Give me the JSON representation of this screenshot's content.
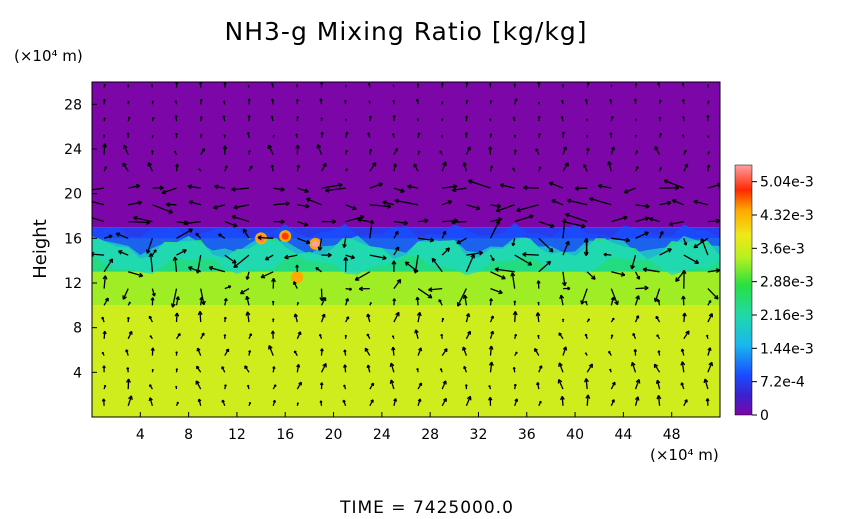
{
  "chart_data": {
    "type": "heatmap",
    "title": "NH3-g Mixing Ratio [kg/kg]",
    "ylabel": "Height",
    "y_unit": "(×10⁴ m)",
    "x_unit": "(×10⁴ m)",
    "xlim": [
      0,
      52
    ],
    "ylim": [
      0,
      30
    ],
    "x_ticks": [
      "4",
      "8",
      "12",
      "16",
      "20",
      "24",
      "28",
      "32",
      "36",
      "40",
      "44",
      "48"
    ],
    "y_ticks": [
      "4",
      "8",
      "12",
      "16",
      "20",
      "24",
      "28"
    ],
    "colorbar": {
      "range": [
        0,
        0.0054
      ],
      "tick_labels": [
        "5.04e-3",
        "4.32e-3",
        "3.6e-3",
        "2.88e-3",
        "2.16e-3",
        "1.44e-3",
        "7.2e-4",
        "0"
      ],
      "tick_values": [
        0.00504,
        0.00432,
        0.0036,
        0.00288,
        0.00216,
        0.00144,
        0.00072,
        0
      ]
    },
    "layers": [
      {
        "from_height": 0,
        "to_height": 10,
        "value": 0.0036
      },
      {
        "from_height": 10,
        "to_height": 13,
        "value": 0.0033
      },
      {
        "from_height": 13,
        "to_height": 16,
        "value": 0.0024
      },
      {
        "from_height": 16,
        "to_height": 17,
        "value": 0.0007
      },
      {
        "from_height": 17,
        "to_height": 30,
        "value": 0.0
      }
    ],
    "hotspots": [
      {
        "x": 14,
        "y": 16,
        "value": 0.0052
      },
      {
        "x": 16,
        "y": 16.2,
        "value": 0.0048
      },
      {
        "x": 18.5,
        "y": 15.5,
        "value": 0.0054
      },
      {
        "x": 17,
        "y": 12.5,
        "value": 0.0044
      }
    ],
    "overlay": "wind vector arrows"
  },
  "footer": {
    "time_label": "TIME  =  7425000.0"
  },
  "colors": {
    "background": "#ffffff",
    "scale": [
      "#7d06a8",
      "#4a28d8",
      "#1a50ff",
      "#18c0f0",
      "#2fd890",
      "#28e040",
      "#c4f01e",
      "#f0e818",
      "#ffb000",
      "#ff3000",
      "#ff9090"
    ],
    "arrows": "#000000"
  }
}
